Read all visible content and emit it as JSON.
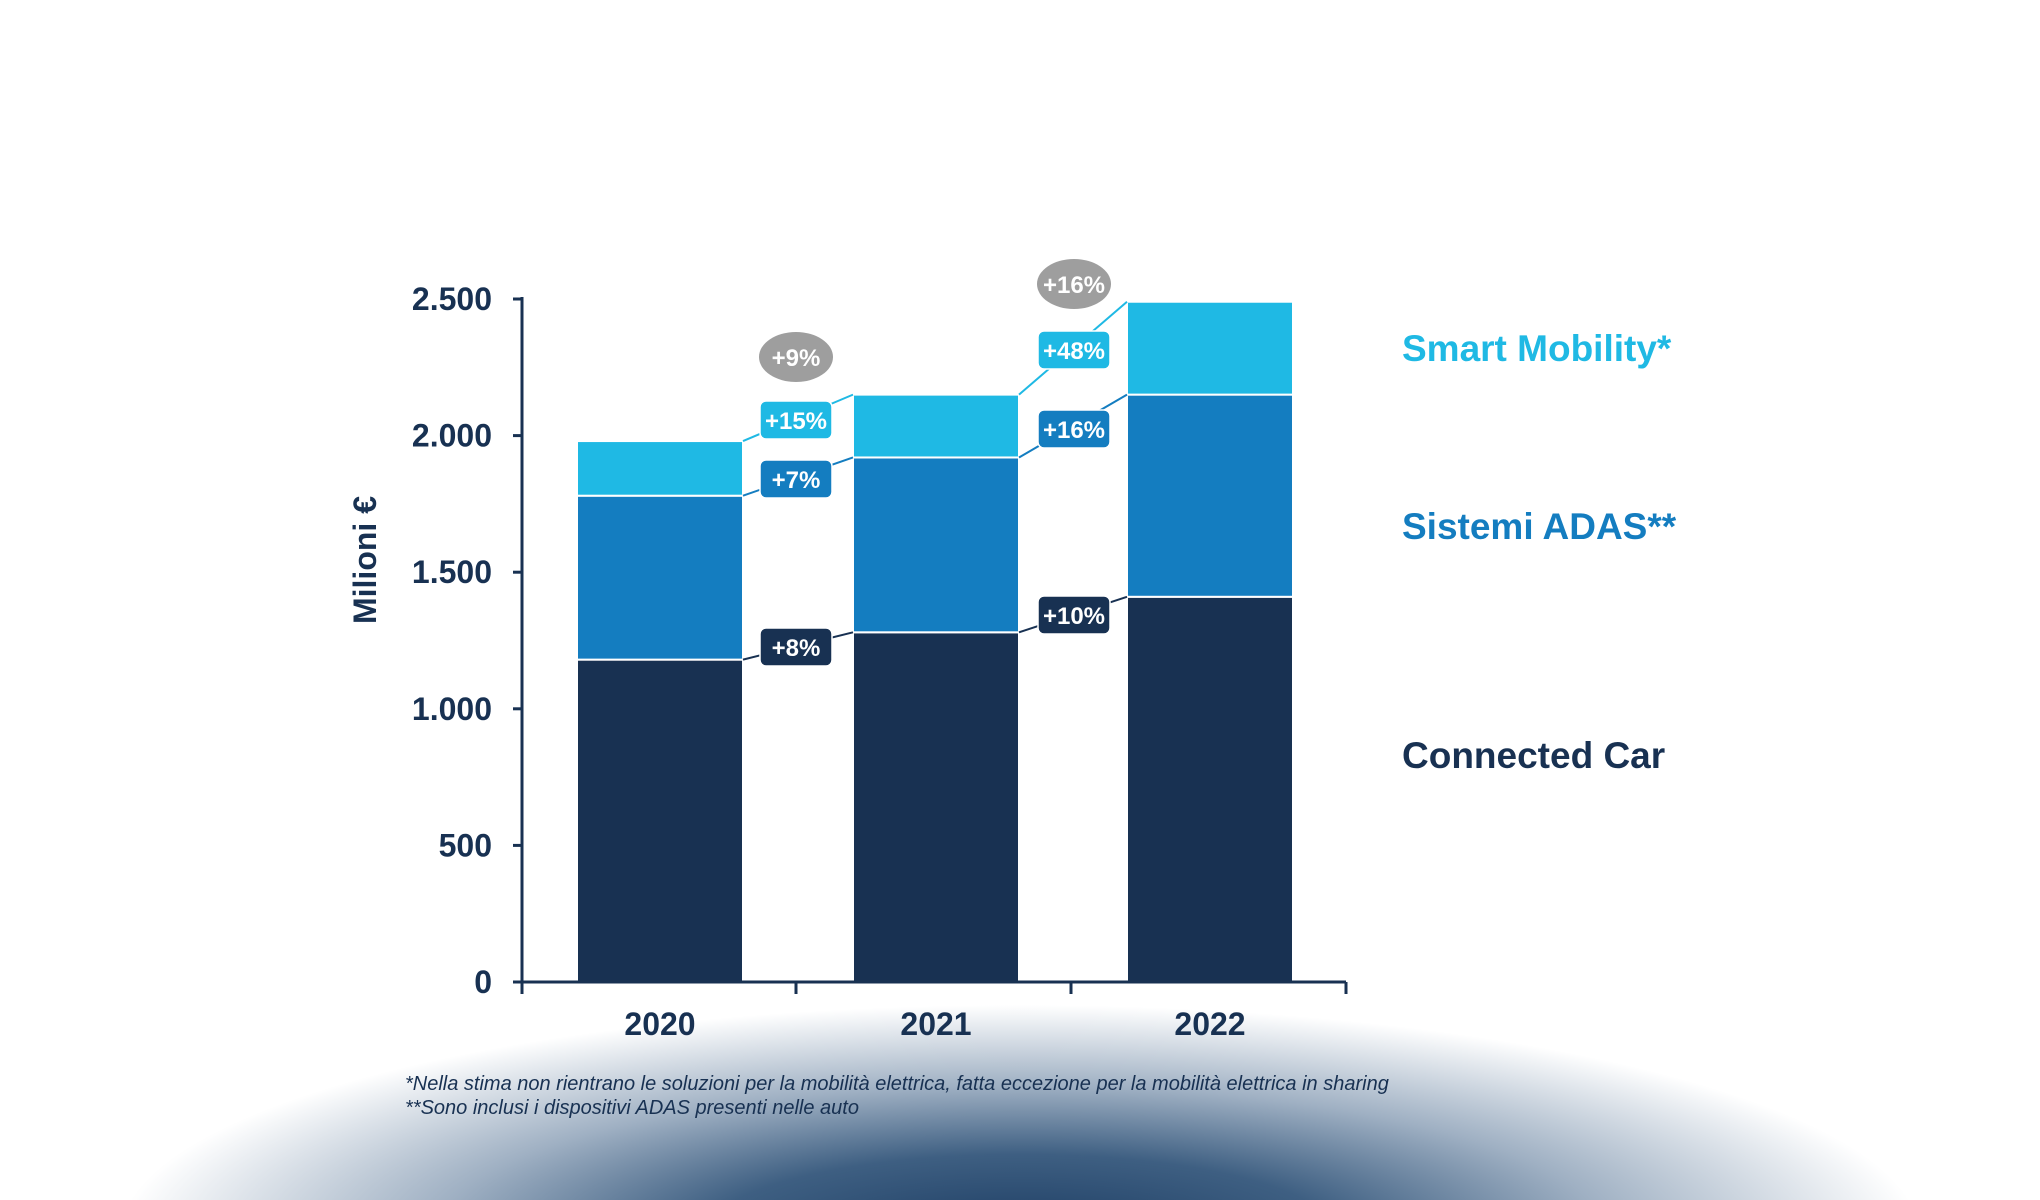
{
  "chart_data": {
    "type": "bar",
    "stacked": true,
    "categories": [
      "2020",
      "2021",
      "2022"
    ],
    "ylabel": "Milioni €",
    "ylim": [
      0,
      2500
    ],
    "yticks": [
      0,
      500,
      1000,
      1500,
      2000,
      2500
    ],
    "ytick_labels": [
      "0",
      "500",
      "1.000",
      "1.500",
      "2.000",
      "2.500"
    ],
    "grid": false,
    "legend_placement": "right",
    "series": [
      {
        "name": "Connected Car",
        "color": "#183152",
        "values": [
          1180,
          1280,
          1410
        ],
        "growth_labels": [
          "+8%",
          "+10%"
        ]
      },
      {
        "name": "Sistemi ADAS**",
        "color": "#147dc0",
        "values": [
          600,
          640,
          740
        ],
        "growth_labels": [
          "+7%",
          "+16%"
        ]
      },
      {
        "name": "Smart Mobility*",
        "color": "#1fb9e4",
        "values": [
          200,
          230,
          340
        ],
        "growth_labels": [
          "+15%",
          "+48%"
        ]
      }
    ],
    "total_growth_labels": [
      "+9%",
      "+16%"
    ],
    "total_growth_color": "#9e9e9e",
    "footnotes": [
      "*Nella stima non rientrano le soluzioni per la mobilità elettrica, fatta eccezione per la mobilità elettrica in sharing",
      "**Sono inclusi i dispositivi ADAS presenti nelle auto"
    ]
  }
}
